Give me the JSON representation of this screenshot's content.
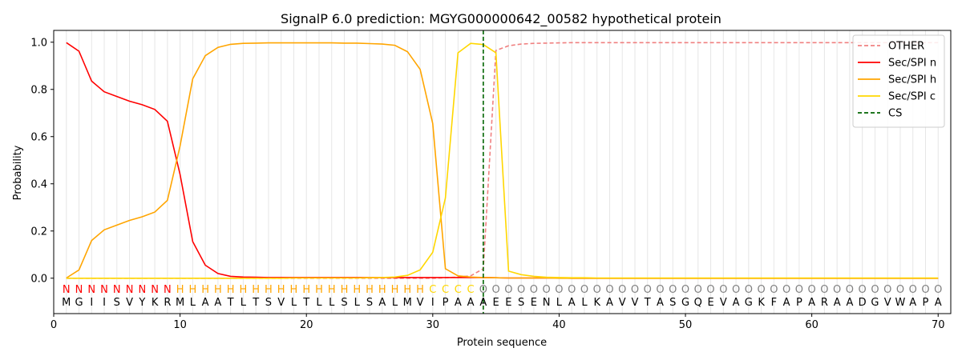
{
  "chart_data": {
    "type": "line",
    "title": "SignalP 6.0 prediction: MGYG000000642_00582 hypothetical protein",
    "xlabel": "Protein sequence",
    "ylabel": "Probability",
    "xlim": [
      0,
      71
    ],
    "ylim": [
      -0.15,
      1.05
    ],
    "xticks": [
      0,
      10,
      20,
      30,
      40,
      50,
      60,
      70
    ],
    "yticks": [
      0.0,
      0.2,
      0.4,
      0.6,
      0.8,
      1.0
    ],
    "grid": "vertical at each residue",
    "legend_position": "top-right",
    "sequence": "MGIISVYKRMLAATLTSVLTLLSLSALMVIPAAAEESENLALKAVVTASGQEVAGKFAPARAADGVWAPA",
    "labels": "NNNNNNNNNHHHHHHHHHHHHHHHHHHHHCCCCOOOOOOOOOOOOOOOOOOOOOOOOOOOOOOOOOOOOO",
    "label_colors": {
      "N": "#ff0000",
      "H": "#ffa500",
      "C": "#ffd700",
      "O": "#808080"
    },
    "cleavage_site": 34,
    "series": [
      {
        "name": "OTHER",
        "color": "#f08080",
        "dash": true,
        "values": [
          0,
          0,
          0,
          0,
          0,
          0,
          0,
          0,
          0,
          0,
          0,
          0,
          0,
          0,
          0,
          0,
          0,
          0,
          0,
          0,
          0,
          0,
          0,
          0,
          0,
          0,
          0,
          0,
          0,
          0,
          0.002,
          0.005,
          0.01,
          0.04,
          0.965,
          0.985,
          0.992,
          0.995,
          0.996,
          0.997,
          0.998,
          0.998,
          0.998,
          0.998,
          0.998,
          0.998,
          0.998,
          0.998,
          0.998,
          0.998,
          0.998,
          0.998,
          0.998,
          0.998,
          0.998,
          0.998,
          0.998,
          0.998,
          0.998,
          0.998,
          0.998,
          0.998,
          0.998,
          0.998,
          0.998,
          0.998,
          0.998,
          0.998,
          0.998,
          0.998
        ]
      },
      {
        "name": "Sec/SPI n",
        "color": "#ff0000",
        "dash": false,
        "values": [
          0.998,
          0.962,
          0.835,
          0.79,
          0.77,
          0.75,
          0.735,
          0.715,
          0.665,
          0.44,
          0.155,
          0.055,
          0.02,
          0.008,
          0.005,
          0.004,
          0.003,
          0.003,
          0.003,
          0.003,
          0.003,
          0.003,
          0.003,
          0.003,
          0.003,
          0.003,
          0.003,
          0.003,
          0.003,
          0.003,
          0.003,
          0.003,
          0.003,
          0.003,
          0.002,
          0.001,
          0.001,
          0.001,
          0.001,
          0.001,
          0,
          0,
          0,
          0,
          0,
          0,
          0,
          0,
          0,
          0,
          0,
          0,
          0,
          0,
          0,
          0,
          0,
          0,
          0,
          0,
          0,
          0,
          0,
          0,
          0,
          0,
          0,
          0,
          0,
          0
        ]
      },
      {
        "name": "Sec/SPI h",
        "color": "#ffa500",
        "dash": false,
        "values": [
          0.001,
          0.035,
          0.16,
          0.205,
          0.225,
          0.245,
          0.26,
          0.28,
          0.33,
          0.56,
          0.845,
          0.943,
          0.978,
          0.991,
          0.995,
          0.996,
          0.997,
          0.997,
          0.997,
          0.997,
          0.997,
          0.997,
          0.996,
          0.996,
          0.994,
          0.992,
          0.987,
          0.96,
          0.885,
          0.655,
          0.04,
          0.01,
          0.005,
          0.003,
          0.002,
          0.001,
          0.001,
          0.001,
          0.001,
          0,
          0,
          0,
          0,
          0,
          0,
          0,
          0,
          0,
          0,
          0,
          0,
          0,
          0,
          0,
          0,
          0,
          0,
          0,
          0,
          0,
          0,
          0,
          0,
          0,
          0,
          0,
          0,
          0,
          0,
          0
        ]
      },
      {
        "name": "Sec/SPI c",
        "color": "#ffd700",
        "dash": false,
        "values": [
          0,
          0,
          0,
          0,
          0,
          0,
          0,
          0,
          0,
          0,
          0,
          0,
          0,
          0,
          0,
          0,
          0,
          0,
          0.001,
          0.001,
          0.001,
          0.001,
          0.001,
          0.001,
          0.002,
          0.003,
          0.005,
          0.012,
          0.035,
          0.11,
          0.34,
          0.955,
          0.995,
          0.99,
          0.955,
          0.03,
          0.015,
          0.008,
          0.004,
          0.003,
          0.002,
          0.002,
          0.001,
          0.001,
          0.001,
          0.001,
          0.001,
          0.001,
          0.001,
          0.001,
          0.001,
          0.001,
          0.001,
          0.001,
          0.001,
          0.001,
          0.001,
          0.001,
          0.001,
          0.001,
          0.001,
          0.001,
          0.001,
          0.001,
          0.001,
          0.001,
          0.001,
          0.001,
          0.001,
          0.001
        ]
      }
    ],
    "cs_legend": {
      "name": "CS",
      "color": "#006400",
      "dash": true
    }
  }
}
